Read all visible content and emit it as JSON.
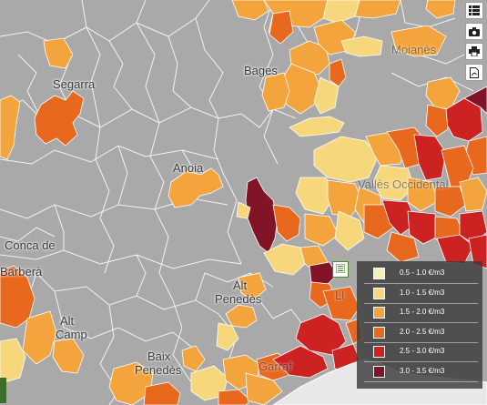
{
  "map": {
    "labels": {
      "segarra": "Segarra",
      "bages": "Bages",
      "anoia": "Anoia",
      "conca": "Conca de",
      "barbera": "Barberà",
      "alt_penedes_1": "Alt",
      "alt_penedes_2": "Penedès",
      "alt_camp_1": "Alt",
      "alt_camp_2": "Camp",
      "baix_penedes_1": "Baix",
      "baix_penedes_2": "Penedès",
      "valles_occidental": "Vallès Occidental",
      "moianes": "Moianès",
      "garraf": "Garraf",
      "llobregat_fragment": "Ll"
    },
    "colors": {
      "background": "#a9a9a9",
      "border": "#ffffff",
      "sea": "#e8e8e8"
    }
  },
  "legend": {
    "toggle_icon": "legend-list-icon",
    "items": [
      {
        "label": "0.5 - 1.0 €/m3",
        "color": "#f5f0b4"
      },
      {
        "label": "1.0 - 1.5 €/m3",
        "color": "#f6d77c"
      },
      {
        "label": "1.5 - 2.0 €/m3",
        "color": "#f3a43c"
      },
      {
        "label": "2.0 - 2.5 €/m3",
        "color": "#e8681e"
      },
      {
        "label": "2.5 - 3.0 €/m3",
        "color": "#cc2222"
      },
      {
        "label": "3.0 - 3.5 €/m3",
        "color": "#821428"
      }
    ]
  },
  "toolbar": {
    "buttons": [
      {
        "name": "layers-list-icon"
      },
      {
        "name": "camera-icon"
      },
      {
        "name": "print-icon"
      },
      {
        "name": "pdf-icon"
      }
    ]
  }
}
